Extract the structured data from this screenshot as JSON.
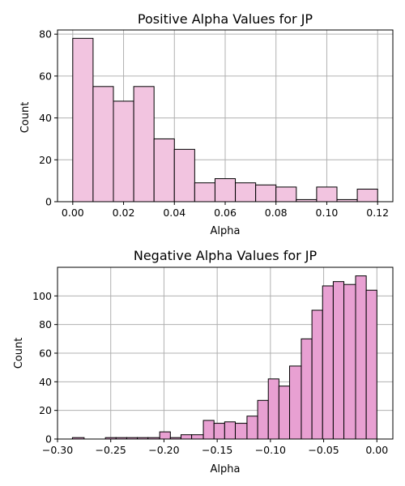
{
  "chart_data": [
    {
      "type": "bar",
      "title": "Positive Alpha Values for JP",
      "xlabel": "Alpha",
      "ylabel": "Count",
      "xlim": [
        -0.006,
        0.126
      ],
      "ylim": [
        0,
        82
      ],
      "xticks": [
        0.0,
        0.02,
        0.04,
        0.06,
        0.08,
        0.1,
        0.12
      ],
      "xtick_labels": [
        "0.00",
        "0.02",
        "0.04",
        "0.06",
        "0.08",
        "0.10",
        "0.12"
      ],
      "yticks": [
        0,
        20,
        40,
        60,
        80
      ],
      "ytick_labels": [
        "0",
        "20",
        "40",
        "60",
        "80"
      ],
      "grid": true,
      "color": "#f2c4e0",
      "bin_edges": [
        0.0,
        0.008,
        0.016,
        0.024,
        0.032,
        0.04,
        0.048,
        0.056,
        0.064,
        0.072,
        0.08,
        0.088,
        0.096,
        0.104,
        0.112,
        0.12
      ],
      "values": [
        78,
        55,
        48,
        55,
        30,
        25,
        9,
        11,
        9,
        8,
        7,
        1,
        7,
        1,
        6
      ]
    },
    {
      "type": "bar",
      "title": "Negative Alpha Values for JP",
      "xlabel": "Alpha",
      "ylabel": "Count",
      "xlim": [
        -0.3,
        0.015
      ],
      "ylim": [
        0,
        120
      ],
      "xticks": [
        -0.3,
        -0.25,
        -0.2,
        -0.15,
        -0.1,
        -0.05,
        0.0
      ],
      "xtick_labels": [
        "−0.30",
        "−0.25",
        "−0.20",
        "−0.15",
        "−0.10",
        "−0.05",
        "0.00"
      ],
      "yticks": [
        0,
        20,
        40,
        60,
        80,
        100
      ],
      "ytick_labels": [
        "0",
        "20",
        "40",
        "60",
        "80",
        "100"
      ],
      "grid": true,
      "color": "#e8a0d2",
      "bin_edges": [
        -0.286,
        -0.275,
        -0.265,
        -0.255,
        -0.245,
        -0.235,
        -0.225,
        -0.215,
        -0.204,
        -0.194,
        -0.184,
        -0.174,
        -0.163,
        -0.153,
        -0.143,
        -0.133,
        -0.122,
        -0.112,
        -0.102,
        -0.092,
        -0.082,
        -0.071,
        -0.061,
        -0.051,
        -0.041,
        -0.031,
        -0.02,
        -0.01,
        0.0
      ],
      "values": [
        1,
        0,
        0,
        1,
        1,
        1,
        1,
        1,
        5,
        1,
        3,
        3,
        13,
        11,
        12,
        11,
        16,
        27,
        42,
        37,
        51,
        70,
        90,
        107,
        110,
        108,
        114,
        104
      ]
    }
  ]
}
